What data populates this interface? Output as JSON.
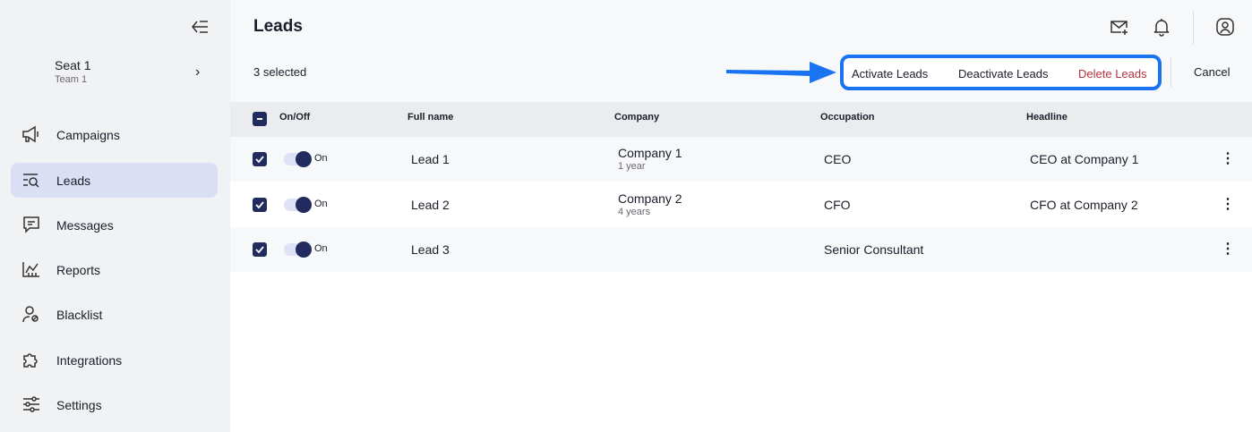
{
  "sidebar": {
    "seat": {
      "name": "Seat 1",
      "team": "Team 1"
    },
    "items": [
      {
        "label": "Campaigns",
        "icon": "megaphone-icon"
      },
      {
        "label": "Leads",
        "icon": "leads-search-icon",
        "active": true
      },
      {
        "label": "Messages",
        "icon": "message-icon"
      },
      {
        "label": "Reports",
        "icon": "chart-icon"
      },
      {
        "label": "Blacklist",
        "icon": "user-block-icon"
      },
      {
        "label": "Integrations",
        "icon": "puzzle-icon"
      },
      {
        "label": "Settings",
        "icon": "sliders-icon"
      }
    ]
  },
  "header": {
    "title": "Leads",
    "icons": [
      "mail-plus-icon",
      "bell-icon",
      "user-icon"
    ]
  },
  "selection": {
    "count_label": "3 selected",
    "actions": {
      "activate": "Activate Leads",
      "deactivate": "Deactivate Leads",
      "delete": "Delete Leads"
    },
    "cancel": "Cancel"
  },
  "colors": {
    "accent": "#222b5e",
    "highlight": "#1a73f0",
    "danger": "#b3343f",
    "active_nav": "#dadff5"
  },
  "table": {
    "columns": [
      "On/Off",
      "Full name",
      "Company",
      "Occupation",
      "Headline"
    ],
    "rows": [
      {
        "checked": true,
        "status": "On",
        "name": "Lead 1",
        "company": "Company 1",
        "tenure": "1 year",
        "occupation": "CEO",
        "headline": "CEO at Company 1"
      },
      {
        "checked": true,
        "status": "On",
        "name": "Lead 2",
        "company": "Company 2",
        "tenure": "4 years",
        "occupation": "CFO",
        "headline": "CFO at Company 2"
      },
      {
        "checked": true,
        "status": "On",
        "name": "Lead 3",
        "company": "",
        "tenure": "",
        "occupation": "Senior Consultant",
        "headline": ""
      }
    ]
  }
}
